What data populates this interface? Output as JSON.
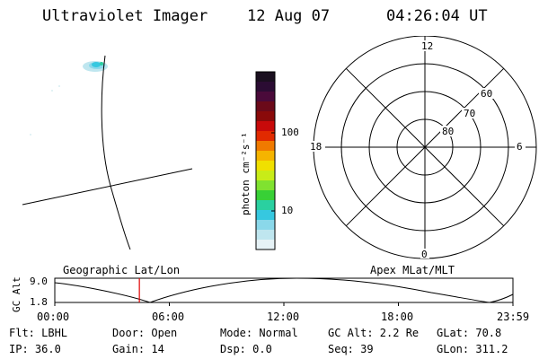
{
  "header": {
    "instrument": "Ultraviolet Imager",
    "date": "12 Aug 07",
    "time": "04:26:04 UT"
  },
  "colorbar": {
    "unit_label": "photon cm⁻²s⁻¹",
    "ticks": [
      "100",
      "10"
    ],
    "colors": [
      "#1a0f1f",
      "#2b0c33",
      "#4a0a3a",
      "#6b0a1a",
      "#8a0a0a",
      "#c80a0a",
      "#e12a00",
      "#f07a00",
      "#f5b400",
      "#f0e000",
      "#c8ec18",
      "#80e230",
      "#38d036",
      "#2ad0a0",
      "#36c8e0",
      "#8ad8ea",
      "#bfe6ef",
      "#e6f2f6"
    ]
  },
  "polar": {
    "mlt_labels": [
      "12",
      "18",
      "6",
      "0"
    ],
    "lat_labels": [
      "60",
      "70",
      "80"
    ]
  },
  "timeline": {
    "left_title": "Geographic Lat/Lon",
    "right_title": "Apex MLat/MLT",
    "axis_label": "GC Alt",
    "y_top": "9.0",
    "y_bottom": "1.8",
    "x_labels": [
      "00:00",
      "06:00",
      "12:00",
      "18:00",
      "23:59"
    ],
    "marker_hours": 4.43,
    "marker_color": "#e00000"
  },
  "status": {
    "filter": "Flt: LBHL",
    "door": "Door: Open",
    "mode": "Mode: Normal",
    "gc_alt": "GC Alt: 2.2 Re",
    "glat": "GLat:  70.8",
    "ip": "IP: 36.0",
    "gain": "Gain: 14",
    "dsp": "Dsp:    0.0",
    "seq": "Seq: 39",
    "glon": "GLon: 311.2"
  }
}
